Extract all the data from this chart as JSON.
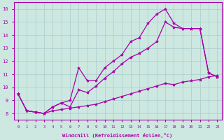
{
  "bg_color": "#cce8e0",
  "line_color": "#aa00aa",
  "grid_color": "#aacccc",
  "xlabel": "Windchill (Refroidissement éolien,°C)",
  "ylim": [
    7.5,
    16.5
  ],
  "xlim": [
    -0.5,
    23.5
  ],
  "yticks": [
    8,
    9,
    10,
    11,
    12,
    13,
    14,
    15,
    16
  ],
  "xticks": [
    0,
    1,
    2,
    3,
    4,
    5,
    6,
    7,
    8,
    9,
    10,
    11,
    12,
    13,
    14,
    15,
    16,
    17,
    18,
    19,
    20,
    21,
    22,
    23
  ],
  "line1_x": [
    0,
    1,
    2,
    3,
    4,
    5,
    6,
    7,
    8,
    9,
    10,
    11,
    12,
    13,
    14,
    15,
    16,
    17,
    18,
    19,
    20,
    21,
    22,
    23
  ],
  "line1_y": [
    9.5,
    8.2,
    8.1,
    8.0,
    8.5,
    8.8,
    9.0,
    11.5,
    10.5,
    10.5,
    11.5,
    12.0,
    12.5,
    13.5,
    13.8,
    14.9,
    15.6,
    16.0,
    14.9,
    14.5,
    14.5,
    14.5,
    11.1,
    10.8
  ],
  "line2_x": [
    0,
    1,
    2,
    3,
    4,
    5,
    6,
    7,
    8,
    9,
    10,
    11,
    12,
    13,
    14,
    15,
    16,
    17,
    18,
    19,
    20,
    21,
    22,
    23
  ],
  "line2_y": [
    9.5,
    8.2,
    8.1,
    8.0,
    8.5,
    8.8,
    8.5,
    9.8,
    9.6,
    10.1,
    10.7,
    11.2,
    11.8,
    12.3,
    12.6,
    13.0,
    13.5,
    15.0,
    14.6,
    14.5,
    14.5,
    14.5,
    11.1,
    10.8
  ],
  "line3_x": [
    0,
    1,
    2,
    3,
    4,
    5,
    6,
    7,
    8,
    9,
    10,
    11,
    12,
    13,
    14,
    15,
    16,
    17,
    18,
    19,
    20,
    21,
    22,
    23
  ],
  "line3_y": [
    9.5,
    8.2,
    8.1,
    8.0,
    8.2,
    8.3,
    8.4,
    8.5,
    8.6,
    8.7,
    8.9,
    9.1,
    9.3,
    9.5,
    9.7,
    9.9,
    10.1,
    10.3,
    10.2,
    10.4,
    10.5,
    10.6,
    10.8,
    10.9
  ]
}
